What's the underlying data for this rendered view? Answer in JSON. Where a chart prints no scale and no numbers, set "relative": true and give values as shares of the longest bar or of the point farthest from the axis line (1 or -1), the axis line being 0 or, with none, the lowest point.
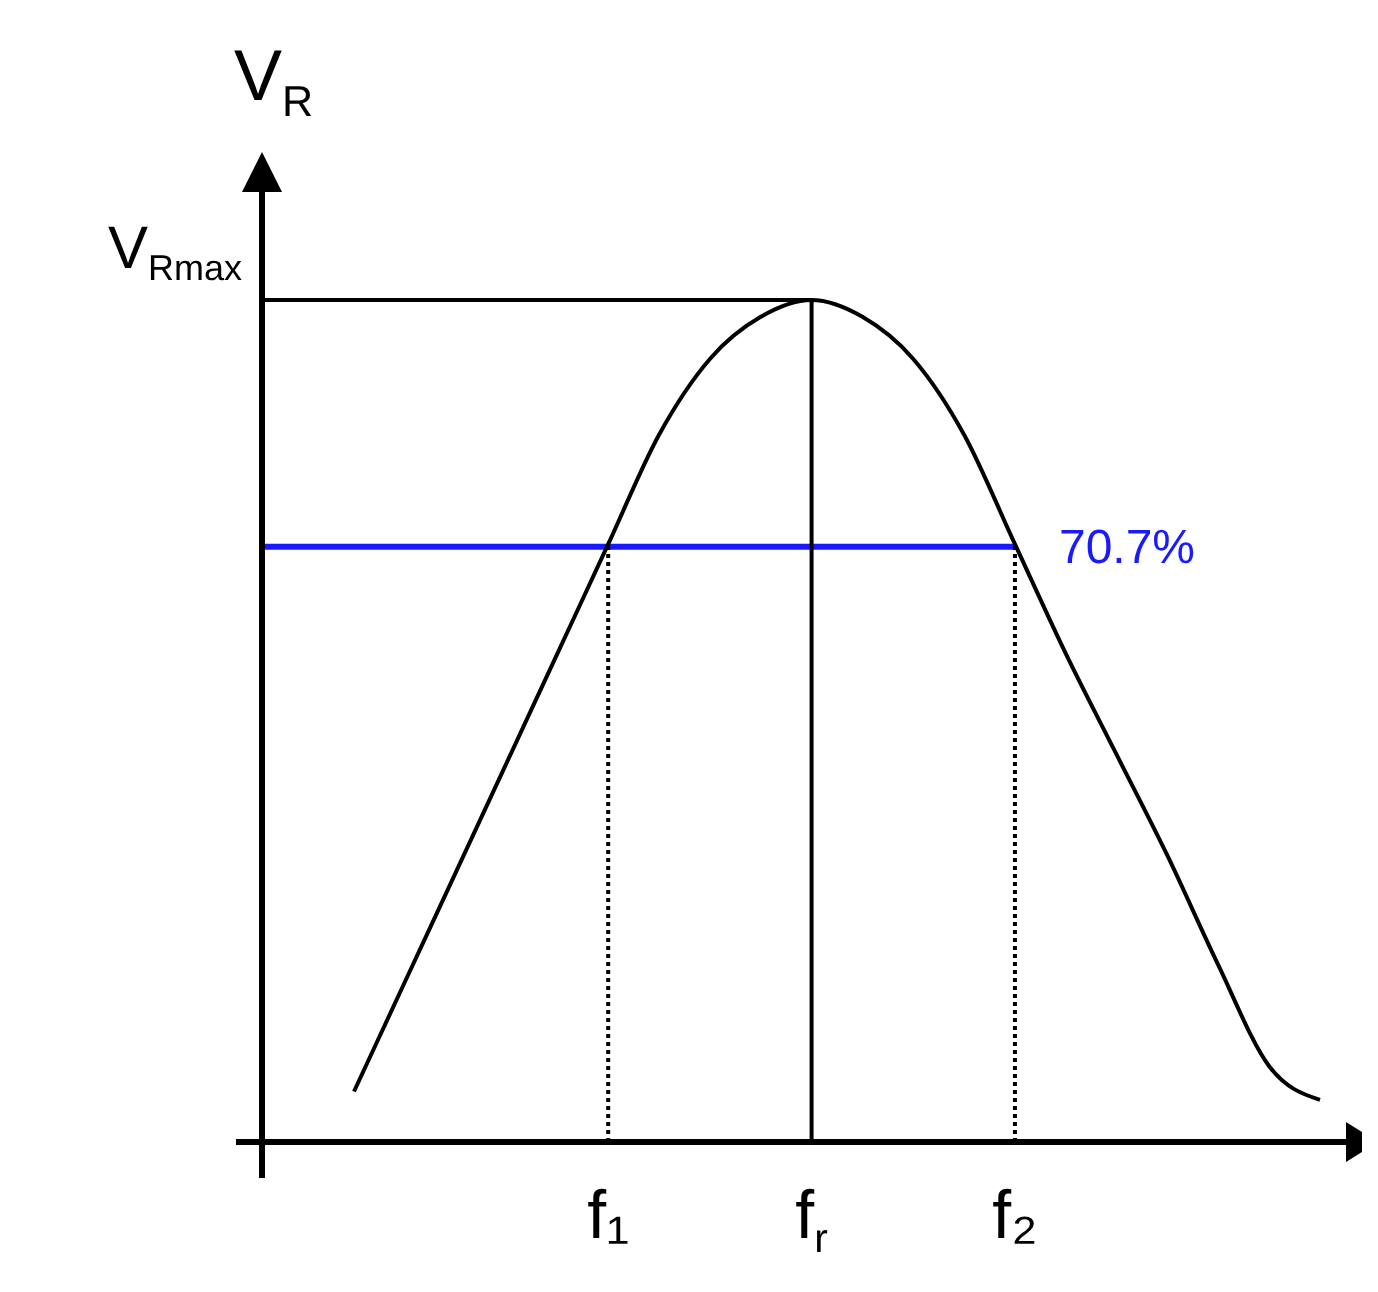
{
  "chart_data": {
    "type": "line",
    "relative": true,
    "ylabel": "V$_{R}$",
    "categories": [
      null,
      null,
      null,
      null,
      null,
      "f₁",
      null,
      null,
      null,
      "f$_{r}$",
      null,
      null,
      null,
      "f₂",
      null,
      null,
      null,
      null,
      null,
      null
    ],
    "series": [
      {
        "color": "#000000",
        "values": [
          0.06,
          0.19,
          0.32,
          0.45,
          0.58,
          0.71,
          0.84,
          0.93,
          0.98,
          1,
          0.98,
          0.93,
          0.84,
          0.71,
          0.58,
          0.46,
          0.34,
          0.21,
          0.09,
          0.05
        ]
      }
    ],
    "ref_lines": [
      {
        "axis": "y",
        "value": 1,
        "label": "V$_{Rmax}$",
        "color": "#000000"
      },
      {
        "axis": "y",
        "value": 0.707,
        "label": "70.7%",
        "color": "#1a1aff"
      },
      {
        "axis": "x",
        "value": "f₁",
        "color": "#000000",
        "line_style": "dotted"
      },
      {
        "axis": "x",
        "value": "f$_{r}$",
        "color": "#000000",
        "line_style": "solid"
      },
      {
        "axis": "x",
        "value": "f₂",
        "color": "#000000",
        "line_style": "dotted"
      }
    ]
  }
}
